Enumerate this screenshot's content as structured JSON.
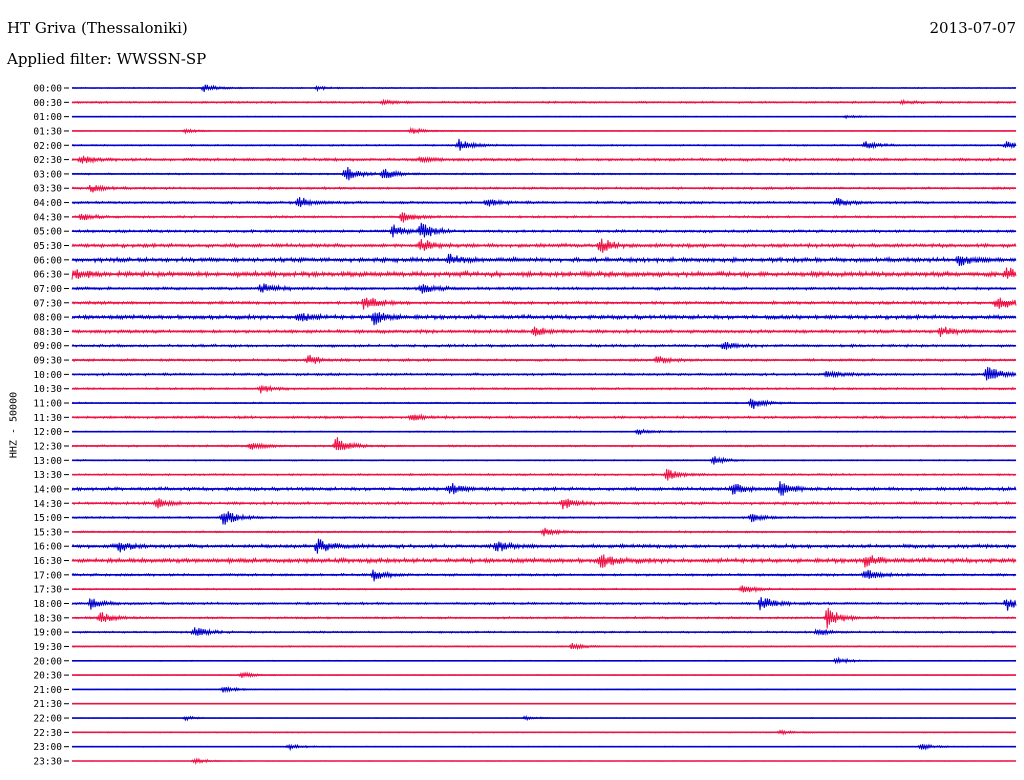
{
  "header": {
    "station": "HT Griva (Thessaloniki)",
    "date": "2013-07-07",
    "filter": "Applied filter: WWSSN-SP"
  },
  "axis": {
    "ylabel": "HHZ - 50000"
  },
  "colors": {
    "line_a": "#0000cc",
    "line_b": "#ee1144"
  },
  "chart_data": {
    "type": "line",
    "title": "HT Griva (Thessaloniki)",
    "subtitle": "Applied filter: WWSSN-SP",
    "ylabel": "HHZ - 50000",
    "xlabel": "",
    "grid": false,
    "legend": "none",
    "row_colors_alternate": [
      "#0000cc",
      "#ee1144"
    ],
    "rows": [
      {
        "label": "00:00",
        "noise": 0.6,
        "events": [
          [
            0.14,
            4
          ],
          [
            0.26,
            2
          ]
        ]
      },
      {
        "label": "00:30",
        "noise": 1.0,
        "events": [
          [
            0.33,
            2
          ],
          [
            0.88,
            1.5
          ]
        ]
      },
      {
        "label": "01:00",
        "noise": 0.5,
        "events": [
          [
            0.82,
            1.5
          ]
        ]
      },
      {
        "label": "01:30",
        "noise": 0.5,
        "events": [
          [
            0.12,
            2
          ],
          [
            0.36,
            3.5
          ]
        ]
      },
      {
        "label": "02:00",
        "noise": 0.8,
        "events": [
          [
            0.41,
            6
          ],
          [
            0.84,
            4
          ],
          [
            0.99,
            4
          ]
        ]
      },
      {
        "label": "02:30",
        "noise": 1.5,
        "events": [
          [
            0.01,
            4
          ],
          [
            0.37,
            2.5
          ]
        ]
      },
      {
        "label": "03:00",
        "noise": 0.9,
        "events": [
          [
            0.29,
            8
          ],
          [
            0.33,
            6
          ]
        ]
      },
      {
        "label": "03:30",
        "noise": 1.2,
        "events": [
          [
            0.02,
            4
          ]
        ]
      },
      {
        "label": "04:00",
        "noise": 1.3,
        "events": [
          [
            0.24,
            6
          ],
          [
            0.44,
            4
          ],
          [
            0.81,
            4
          ]
        ]
      },
      {
        "label": "04:30",
        "noise": 1.2,
        "events": [
          [
            0.01,
            4
          ],
          [
            0.35,
            5
          ]
        ]
      },
      {
        "label": "05:00",
        "noise": 1.4,
        "events": [
          [
            0.34,
            6
          ],
          [
            0.37,
            8
          ]
        ]
      },
      {
        "label": "05:30",
        "noise": 2.0,
        "events": [
          [
            0.37,
            7
          ],
          [
            0.56,
            7
          ]
        ]
      },
      {
        "label": "06:00",
        "noise": 2.4,
        "events": [
          [
            0.4,
            6
          ],
          [
            0.94,
            6
          ]
        ]
      },
      {
        "label": "06:30",
        "noise": 2.8,
        "events": [
          [
            0.0,
            5
          ],
          [
            0.99,
            6
          ]
        ]
      },
      {
        "label": "07:00",
        "noise": 1.5,
        "events": [
          [
            0.2,
            6
          ],
          [
            0.37,
            5
          ]
        ]
      },
      {
        "label": "07:30",
        "noise": 1.6,
        "events": [
          [
            0.31,
            9
          ],
          [
            0.98,
            8
          ]
        ]
      },
      {
        "label": "08:00",
        "noise": 2.2,
        "events": [
          [
            0.24,
            5
          ],
          [
            0.32,
            8
          ]
        ]
      },
      {
        "label": "08:30",
        "noise": 1.8,
        "events": [
          [
            0.49,
            5
          ],
          [
            0.92,
            5
          ]
        ]
      },
      {
        "label": "09:00",
        "noise": 1.4,
        "events": [
          [
            0.69,
            4
          ]
        ]
      },
      {
        "label": "09:30",
        "noise": 1.3,
        "events": [
          [
            0.25,
            5
          ],
          [
            0.62,
            4
          ]
        ]
      },
      {
        "label": "10:00",
        "noise": 1.3,
        "events": [
          [
            0.8,
            4
          ],
          [
            0.97,
            9
          ]
        ]
      },
      {
        "label": "10:30",
        "noise": 1.1,
        "events": [
          [
            0.2,
            4
          ]
        ]
      },
      {
        "label": "11:00",
        "noise": 0.8,
        "events": [
          [
            0.72,
            7
          ]
        ]
      },
      {
        "label": "11:30",
        "noise": 1.3,
        "events": [
          [
            0.36,
            3
          ]
        ]
      },
      {
        "label": "12:00",
        "noise": 0.7,
        "events": [
          [
            0.6,
            3
          ]
        ]
      },
      {
        "label": "12:30",
        "noise": 1.0,
        "events": [
          [
            0.28,
            9
          ],
          [
            0.19,
            4
          ]
        ]
      },
      {
        "label": "13:00",
        "noise": 0.7,
        "events": [
          [
            0.68,
            4
          ]
        ]
      },
      {
        "label": "13:30",
        "noise": 1.0,
        "events": [
          [
            0.63,
            6
          ]
        ]
      },
      {
        "label": "14:00",
        "noise": 1.8,
        "events": [
          [
            0.4,
            6
          ],
          [
            0.7,
            6
          ],
          [
            0.75,
            8
          ]
        ]
      },
      {
        "label": "14:30",
        "noise": 1.5,
        "events": [
          [
            0.09,
            5
          ],
          [
            0.52,
            6
          ]
        ]
      },
      {
        "label": "15:00",
        "noise": 1.0,
        "events": [
          [
            0.16,
            9
          ],
          [
            0.72,
            4
          ]
        ]
      },
      {
        "label": "15:30",
        "noise": 1.0,
        "events": [
          [
            0.5,
            4
          ]
        ]
      },
      {
        "label": "16:00",
        "noise": 2.0,
        "events": [
          [
            0.05,
            5
          ],
          [
            0.26,
            8
          ],
          [
            0.45,
            5
          ]
        ]
      },
      {
        "label": "16:30",
        "noise": 2.4,
        "events": [
          [
            0.56,
            8
          ],
          [
            0.84,
            6
          ]
        ]
      },
      {
        "label": "17:00",
        "noise": 1.3,
        "events": [
          [
            0.32,
            6
          ],
          [
            0.84,
            6
          ]
        ]
      },
      {
        "label": "17:30",
        "noise": 0.8,
        "events": [
          [
            0.71,
            5
          ]
        ]
      },
      {
        "label": "18:00",
        "noise": 1.2,
        "events": [
          [
            0.02,
            6
          ],
          [
            0.73,
            8
          ],
          [
            0.99,
            7
          ]
        ]
      },
      {
        "label": "18:30",
        "noise": 1.1,
        "events": [
          [
            0.03,
            6
          ],
          [
            0.8,
            12
          ]
        ]
      },
      {
        "label": "19:00",
        "noise": 1.0,
        "events": [
          [
            0.13,
            6
          ],
          [
            0.79,
            4
          ]
        ]
      },
      {
        "label": "19:30",
        "noise": 0.7,
        "events": [
          [
            0.53,
            3
          ]
        ]
      },
      {
        "label": "20:00",
        "noise": 0.5,
        "events": [
          [
            0.81,
            3
          ]
        ]
      },
      {
        "label": "20:30",
        "noise": 0.5,
        "events": [
          [
            0.18,
            3
          ]
        ]
      },
      {
        "label": "21:00",
        "noise": 0.4,
        "events": [
          [
            0.16,
            4
          ]
        ]
      },
      {
        "label": "21:30",
        "noise": 0.3,
        "events": []
      },
      {
        "label": "22:00",
        "noise": 0.4,
        "events": [
          [
            0.12,
            2
          ],
          [
            0.48,
            2
          ]
        ]
      },
      {
        "label": "22:30",
        "noise": 0.6,
        "events": [
          [
            0.75,
            2
          ]
        ]
      },
      {
        "label": "23:00",
        "noise": 0.5,
        "events": [
          [
            0.23,
            3
          ],
          [
            0.9,
            3
          ]
        ]
      },
      {
        "label": "23:30",
        "noise": 0.3,
        "events": [
          [
            0.13,
            3
          ]
        ]
      }
    ]
  }
}
